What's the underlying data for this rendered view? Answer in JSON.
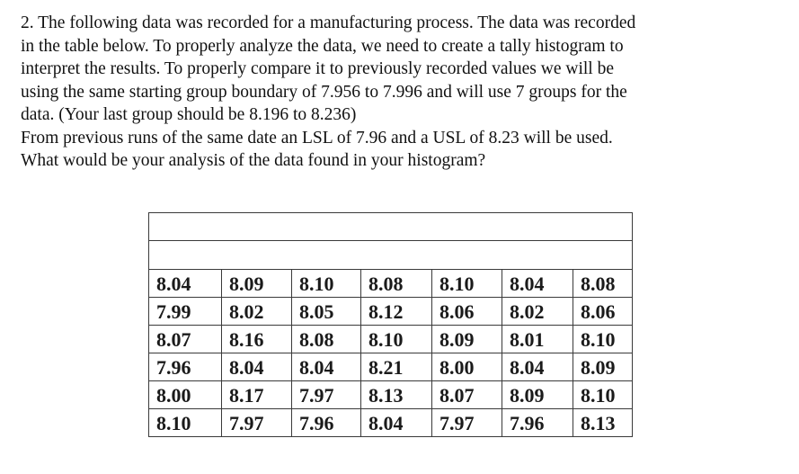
{
  "problem": {
    "lines": [
      "2. The following data was recorded for a manufacturing process.  The data was recorded",
      "in the table below.  To properly analyze the data, we need to create a tally histogram to",
      "interpret the results.  To properly compare it to previously recorded values we will be",
      "using the same starting group boundary of 7.956 to 7.996 and will use 7 groups for the",
      "data. (Your last group should be 8.196 to 8.236)",
      "From previous runs of the same date an LSL of 7.96 and a USL of 8.23 will be used.",
      "What would be your analysis of the data found in your histogram?"
    ]
  },
  "table": {
    "header_row": "",
    "blank_row": "",
    "rows": [
      [
        "8.04",
        "8.09",
        "8.10",
        "8.08",
        "8.10",
        "8.04",
        "8.08"
      ],
      [
        "7.99",
        "8.02",
        "8.05",
        "8.12",
        "8.06",
        "8.02",
        "8.06"
      ],
      [
        "8.07",
        "8.16",
        "8.08",
        "8.10",
        "8.09",
        "8.01",
        "8.10"
      ],
      [
        "7.96",
        "8.04",
        "8.04",
        "8.21",
        "8.00",
        "8.04",
        "8.09"
      ],
      [
        "8.00",
        "8.17",
        "7.97",
        "8.13",
        "8.07",
        "8.09",
        "8.10"
      ],
      [
        "8.10",
        "7.97",
        "7.96",
        "8.04",
        "7.97",
        "7.96",
        "8.13"
      ]
    ]
  }
}
